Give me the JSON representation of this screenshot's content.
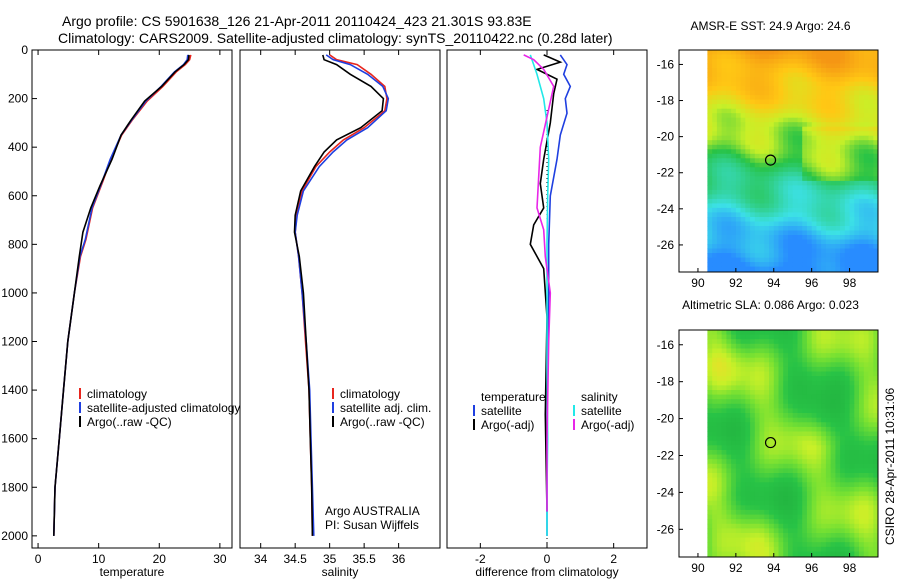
{
  "header": {
    "line1": "Argo profile: CS 5901638_126 21-Apr-2011 20110424_423 21.301S 93.83E",
    "line2": "Climatology: CARS2009. Satellite-adjusted climatology: synTS_20110422.nc (0.28d later)"
  },
  "side_label": "CSIRO 28-Apr-2011 10:31:06",
  "colors": {
    "climatology": "#e8261e",
    "satellite": "#1f3fe0",
    "argo": "#000000",
    "sat_sal": "#22e8e8",
    "argo_sal": "#e826e8"
  },
  "chart_data": [
    {
      "type": "line",
      "name_key": "temperature",
      "xlabel": "temperature",
      "ylabel": "",
      "xlim": [
        -1,
        32
      ],
      "ylim": [
        2050,
        0
      ],
      "xticks": [
        0,
        10,
        20,
        30
      ],
      "yticks": [
        0,
        200,
        400,
        600,
        800,
        1000,
        1200,
        1400,
        1600,
        1800,
        2000
      ],
      "legend": [
        "climatology",
        "satellite-adjusted climatology",
        "Argo(..raw -QC)"
      ],
      "legend_placement": "center-right",
      "series": [
        {
          "name": "climatology",
          "color_key": "climatology",
          "x": [
            25.2,
            25.0,
            24.3,
            22.8,
            20.6,
            18.0,
            15.5,
            13.8,
            12.0,
            10.7,
            9.0,
            7.9,
            7.0,
            6.0,
            4.9,
            4.2,
            3.5,
            2.8,
            2.6
          ],
          "y": [
            20,
            40,
            60,
            90,
            150,
            210,
            290,
            350,
            450,
            540,
            650,
            780,
            850,
            1000,
            1200,
            1400,
            1600,
            1800,
            2000
          ]
        },
        {
          "name": "satellite-adjusted climatology",
          "color_key": "satellite",
          "x": [
            24.7,
            24.6,
            24.0,
            22.5,
            20.3,
            17.8,
            15.4,
            13.7,
            11.9,
            10.6,
            8.9,
            7.8,
            6.9,
            6.0,
            4.9,
            4.2,
            3.5,
            2.8,
            2.6
          ],
          "y": [
            20,
            40,
            60,
            90,
            150,
            210,
            290,
            350,
            450,
            540,
            650,
            780,
            850,
            1000,
            1200,
            1400,
            1600,
            1800,
            2000
          ]
        },
        {
          "name": "Argo(..raw -QC)",
          "color_key": "argo",
          "x": [
            24.9,
            24.8,
            24.1,
            22.6,
            20.4,
            17.6,
            15.3,
            13.7,
            12.2,
            10.2,
            8.7,
            7.4,
            6.8,
            6.0,
            4.9,
            4.2,
            3.5,
            2.8,
            2.6
          ],
          "y": [
            20,
            40,
            60,
            90,
            150,
            210,
            290,
            350,
            450,
            560,
            650,
            750,
            850,
            1000,
            1200,
            1400,
            1600,
            1800,
            2000
          ]
        }
      ]
    },
    {
      "type": "line",
      "name_key": "salinity",
      "xlabel": "salinity",
      "ylabel": "",
      "xlim": [
        33.7,
        36.6
      ],
      "ylim": [
        2050,
        0
      ],
      "xticks": [
        34,
        34.5,
        35,
        35.5,
        36
      ],
      "yticks": [],
      "legend": [
        "climatology",
        "satellite adj. clim.",
        "Argo(..raw -QC)"
      ],
      "legend_placement": "center-right",
      "annotations": [
        "Argo AUSTRALIA",
        "PI: Susan Wijffels"
      ],
      "series": [
        {
          "name": "climatology",
          "color_key": "climatology",
          "x": [
            35.0,
            35.1,
            35.4,
            35.6,
            35.8,
            35.83,
            35.8,
            35.5,
            35.2,
            35.0,
            34.8,
            34.6,
            34.52,
            34.5,
            34.55,
            34.6,
            34.65,
            34.7,
            34.72,
            34.74,
            34.75
          ],
          "y": [
            20,
            40,
            60,
            100,
            150,
            200,
            250,
            320,
            370,
            420,
            480,
            580,
            680,
            750,
            850,
            1000,
            1200,
            1400,
            1600,
            1800,
            2000
          ]
        },
        {
          "name": "satellite adj. clim.",
          "color_key": "satellite",
          "x": [
            34.95,
            35.05,
            35.3,
            35.55,
            35.77,
            35.85,
            35.82,
            35.55,
            35.25,
            35.05,
            34.85,
            34.62,
            34.53,
            34.5,
            34.55,
            34.6,
            34.66,
            34.71,
            34.73,
            34.75,
            34.77
          ],
          "y": [
            20,
            40,
            60,
            100,
            150,
            200,
            250,
            320,
            370,
            420,
            480,
            580,
            680,
            750,
            850,
            1000,
            1200,
            1400,
            1600,
            1800,
            2000
          ]
        },
        {
          "name": "Argo(..raw -QC)",
          "color_key": "argo",
          "x": [
            34.9,
            34.92,
            35.1,
            35.3,
            35.6,
            35.78,
            35.76,
            35.45,
            35.1,
            34.92,
            34.78,
            34.58,
            34.5,
            34.49,
            34.56,
            34.62,
            34.66,
            34.7,
            34.72,
            34.74,
            34.75
          ],
          "y": [
            20,
            40,
            60,
            100,
            150,
            200,
            250,
            320,
            370,
            420,
            480,
            580,
            680,
            750,
            850,
            1000,
            1200,
            1400,
            1600,
            1800,
            2000
          ]
        }
      ]
    },
    {
      "type": "line",
      "name_key": "difference",
      "xlabel": "difference from climatology",
      "ylabel": "",
      "xlim": [
        -3,
        3
      ],
      "ylim": [
        2050,
        0
      ],
      "xticks": [
        -2,
        0,
        2
      ],
      "yticks": [],
      "legend": [
        "temperature",
        "satellite",
        "Argo(-adj)",
        "salinity",
        "satellite",
        "Argo(-adj)"
      ],
      "legend_placement": "center",
      "series": [
        {
          "name": "temperature satellite",
          "color_key": "satellite",
          "x": [
            0.4,
            0.6,
            0.5,
            0.7,
            0.55,
            0.6,
            0.4,
            0.3,
            0.1,
            0.05,
            0.05,
            0.02,
            0.0,
            0.0,
            0.0
          ],
          "y": [
            20,
            60,
            100,
            150,
            200,
            260,
            350,
            450,
            600,
            800,
            1000,
            1200,
            1500,
            1800,
            2000
          ]
        },
        {
          "name": "temperature Argo(-adj)",
          "color_key": "argo",
          "x": [
            -0.1,
            0.4,
            -0.3,
            0.3,
            0.2,
            0.1,
            -0.1,
            -0.2,
            -0.1,
            -0.4,
            -0.5,
            -0.1,
            0.0,
            -0.05,
            0.0
          ],
          "y": [
            20,
            50,
            80,
            120,
            180,
            300,
            450,
            550,
            650,
            720,
            800,
            900,
            1100,
            1500,
            1900
          ]
        },
        {
          "name": "salinity satellite",
          "color_key": "sat_sal",
          "x": [
            -0.5,
            -0.4,
            -0.3,
            -0.1,
            0.0,
            0.05,
            0.02,
            0.0,
            0.0,
            0.0,
            0.02,
            0.0,
            0.0
          ],
          "y": [
            20,
            60,
            100,
            200,
            300,
            450,
            600,
            800,
            1000,
            1300,
            1600,
            1800,
            2000
          ]
        },
        {
          "name": "salinity Argo(-adj)",
          "color_key": "argo_sal",
          "x": [
            -0.7,
            -0.4,
            -0.1,
            0.2,
            -0.2,
            -0.3,
            -0.1,
            -0.05,
            0.1,
            0.05,
            0.0,
            0.0
          ],
          "y": [
            20,
            40,
            80,
            150,
            400,
            650,
            740,
            850,
            1000,
            1200,
            1600,
            1900
          ]
        }
      ]
    },
    {
      "type": "heatmap",
      "name_key": "sst_map",
      "title": "AMSR-E SST: 24.9 Argo: 24.6",
      "xlim": [
        89,
        99.5
      ],
      "ylim": [
        -27.5,
        -15.2
      ],
      "xticks": [
        90,
        92,
        94,
        96,
        98
      ],
      "yticks": [
        -16,
        -18,
        -20,
        -22,
        -24,
        -26
      ],
      "marker": {
        "lon": 93.83,
        "lat": -21.3
      }
    },
    {
      "type": "heatmap",
      "name_key": "sla_map",
      "title": "Altimetric SLA: 0.086 Argo: 0.023",
      "xlim": [
        89,
        99.5
      ],
      "ylim": [
        -27.5,
        -15.2
      ],
      "xticks": [
        90,
        92,
        94,
        96,
        98
      ],
      "yticks": [
        -16,
        -18,
        -20,
        -22,
        -24,
        -26
      ],
      "marker": {
        "lon": 93.83,
        "lat": -21.3
      }
    }
  ]
}
